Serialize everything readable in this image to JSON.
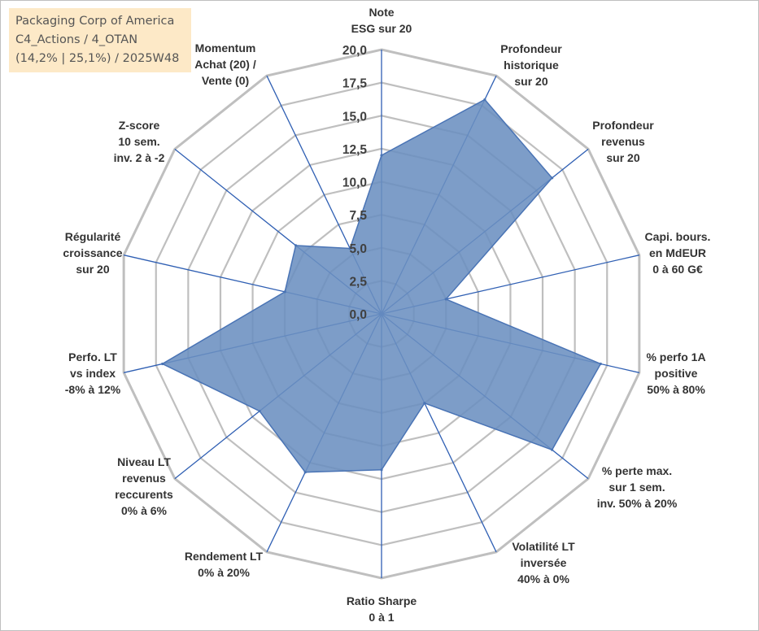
{
  "badge": {
    "line1": "Packaging Corp of America",
    "line2": "C4_Actions / 4_OTAN",
    "line3": "(14,2% | 25,1%) / 2025W48"
  },
  "chart_data": {
    "type": "radar",
    "title": "Packaging Corp of America",
    "r_min": 0,
    "r_max": 20,
    "r_step": 2.5,
    "tick_labels": [
      "0,0",
      "2,5",
      "5,0",
      "7,5",
      "10,0",
      "12,5",
      "15,0",
      "17,5",
      "20,0"
    ],
    "axes": [
      {
        "label": [
          "Note",
          "ESG sur 20"
        ],
        "value": 12.0
      },
      {
        "label": [
          "Profondeur",
          "historique",
          "sur 20"
        ],
        "value": 18.0
      },
      {
        "label": [
          "Profondeur",
          "revenus",
          "sur 20"
        ],
        "value": 16.5
      },
      {
        "label": [
          "Capi. bours.",
          "en MdEUR",
          "0 à 60 G€"
        ],
        "value": 5.0
      },
      {
        "label": [
          "% perfo 1A",
          "positive",
          "50% à 80%"
        ],
        "value": 17.0
      },
      {
        "label": [
          "% perte max.",
          "sur 1 sem.",
          "inv. 50% à 20%"
        ],
        "value": 16.5
      },
      {
        "label": [
          "Volatilité LT",
          "inversée",
          "40% à 0%"
        ],
        "value": 7.5
      },
      {
        "label": [
          "Ratio Sharpe",
          "0 à 1"
        ],
        "value": 11.8
      },
      {
        "label": [
          "Rendement LT",
          "0% à 20%"
        ],
        "value": 13.3
      },
      {
        "label": [
          "Niveau LT",
          "revenus",
          "reccurents",
          "0% à 6%"
        ],
        "value": 11.8
      },
      {
        "label": [
          "Perfo. LT",
          "vs index",
          "-8% à 12%"
        ],
        "value": 17.0
      },
      {
        "label": [
          "Régularité",
          "croissance",
          "sur 20"
        ],
        "value": 7.5
      },
      {
        "label": [
          "Z-score",
          "10 sem.",
          "inv. 2 à -2"
        ],
        "value": 8.3
      },
      {
        "label": [
          "Momentum",
          "Achat (20) /",
          "Vente (0)"
        ],
        "value": 5.5
      }
    ],
    "colors": {
      "fill": "#6b8fc0",
      "stroke": "#4a74b5",
      "axis": "#2f5fb3",
      "grid": "#bfbfbf"
    }
  }
}
